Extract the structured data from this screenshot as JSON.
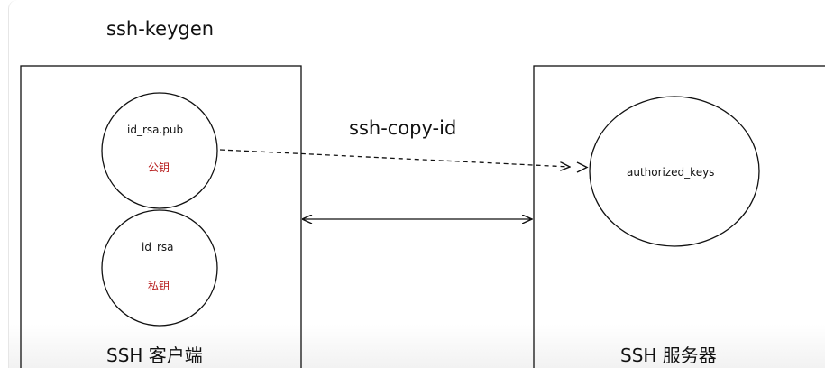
{
  "title": "ssh-keygen",
  "arrow_label": "ssh-copy-id",
  "client": {
    "label": "SSH 客户端",
    "public_key": {
      "name": "id_rsa.pub",
      "note": "公钥"
    },
    "private_key": {
      "name": "id_rsa",
      "note": "私钥"
    }
  },
  "server": {
    "label": "SSH 服务器",
    "authorized": {
      "name": "authorized_keys"
    }
  },
  "colors": {
    "line": "#111111",
    "note_red": "#b71c1c",
    "text": "#111111"
  }
}
